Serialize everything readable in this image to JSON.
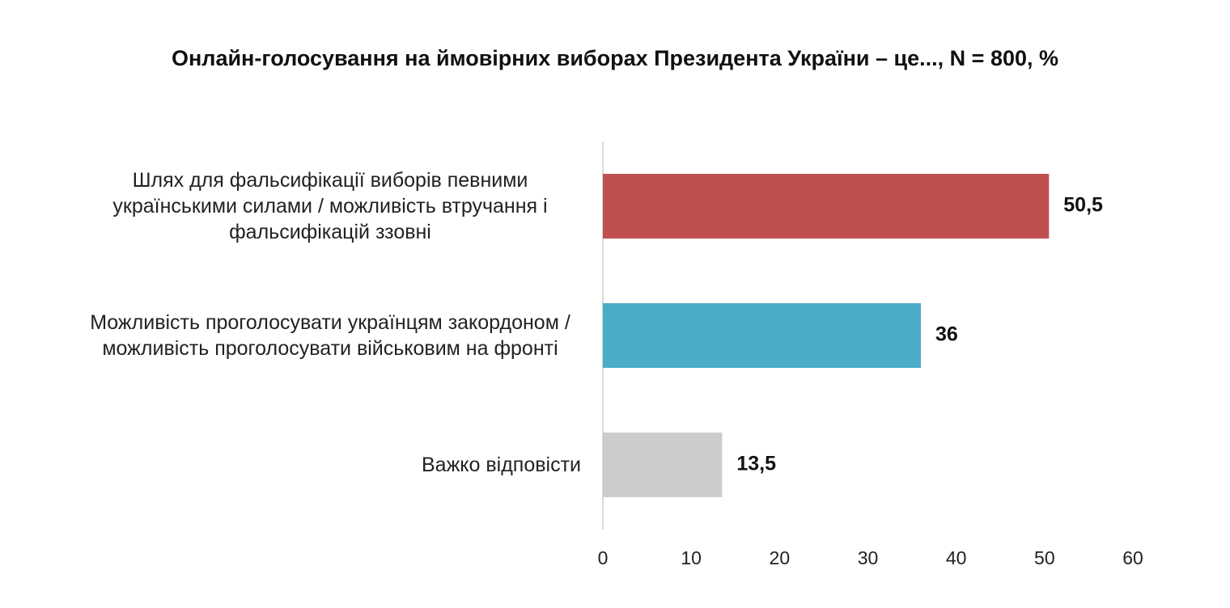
{
  "chart_data": {
    "type": "hbar",
    "title": "Онлайн-голосування на ймовірних виборах Президента України – це..., N = 800, %",
    "categories": [
      "Шлях для фальсифікації виборів певними українськими силами / можливість втручання і фальсифікацій ззовні",
      "Можливість проголосувати українцям закордоном / можливість проголосувати військовим на фронті",
      "Важко відповісти"
    ],
    "values": [
      50.5,
      36,
      13.5
    ],
    "value_labels": [
      "50,5",
      "36",
      "13,5"
    ],
    "colors": [
      "#c0504f",
      "#4bacc6",
      "#cccccc"
    ],
    "xlim": [
      0,
      60
    ],
    "xticks": [
      0,
      10,
      20,
      30,
      40,
      50,
      60
    ],
    "grid": false
  }
}
